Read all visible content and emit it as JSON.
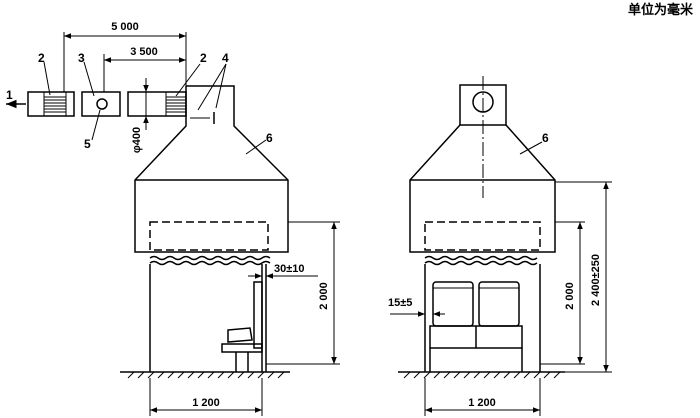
{
  "unit_note": "单位为毫米",
  "callouts": {
    "c1": "1",
    "c2a": "2",
    "c2b": "2",
    "c3": "3",
    "c4": "4",
    "c5": "5",
    "c6a": "6",
    "c6b": "6"
  },
  "dimensions": {
    "d5000": "5 000",
    "d3500": "3 500",
    "d400": "φ400",
    "gap_left": "30±10",
    "h2000_left": "2 000",
    "w1200_left": "1 200",
    "gap_right": "15±5",
    "h2000_right": "2 000",
    "h2400": "2 400±250",
    "w1200_right": "1 200"
  }
}
